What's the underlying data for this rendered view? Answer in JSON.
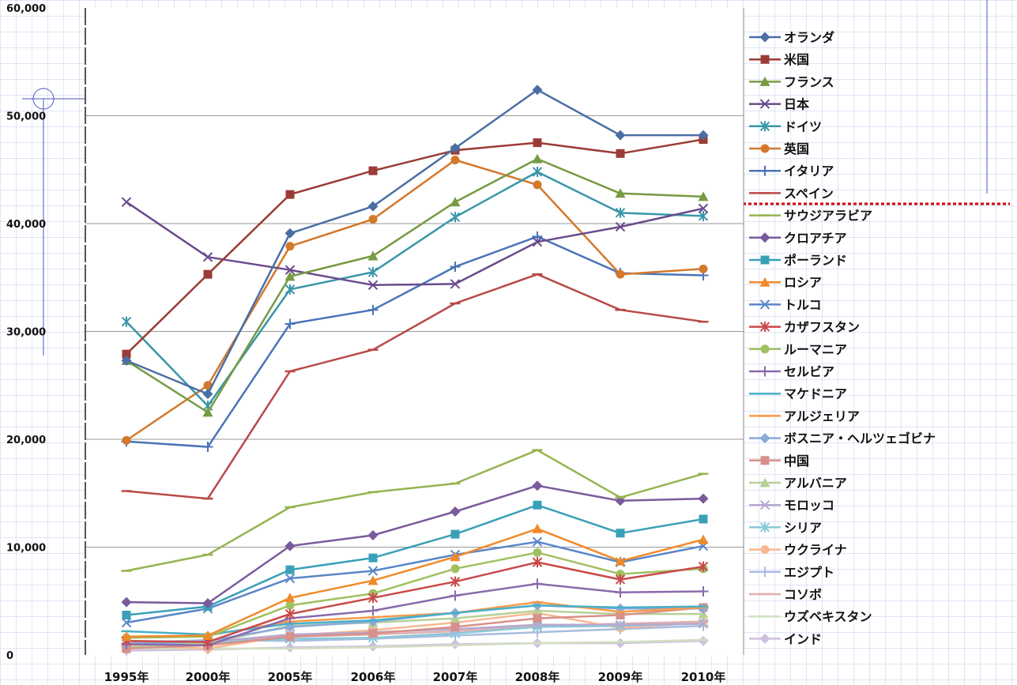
{
  "chart_data": {
    "type": "line",
    "categories": [
      "1995年",
      "2000年",
      "2005年",
      "2006年",
      "2007年",
      "2008年",
      "2009年",
      "2010年"
    ],
    "y_ticks": [
      "0",
      "10,000",
      "20,000",
      "30,000",
      "40,000",
      "50,000",
      "60,000"
    ],
    "ylim": [
      0,
      60000
    ],
    "grid": "horizontal major gridlines",
    "legend_position": "right",
    "series": [
      {
        "name": "オランダ",
        "color": "#4a6fa5",
        "marker": "diamond",
        "values": [
          27300,
          24200,
          39100,
          41600,
          47000,
          52400,
          48200,
          48200
        ]
      },
      {
        "name": "米国",
        "color": "#9b3b36",
        "marker": "square",
        "values": [
          27900,
          35300,
          42700,
          44900,
          46800,
          47500,
          46500,
          47800
        ]
      },
      {
        "name": "フランス",
        "color": "#779a43",
        "marker": "triangle",
        "values": [
          27300,
          22500,
          35100,
          37000,
          42000,
          46000,
          42800,
          42500
        ]
      },
      {
        "name": "日本",
        "color": "#6a4a8c",
        "marker": "x",
        "values": [
          42000,
          36900,
          35700,
          34300,
          34400,
          38300,
          39700,
          41400
        ]
      },
      {
        "name": "ドイツ",
        "color": "#3a96a8",
        "marker": "asterisk",
        "values": [
          30900,
          23100,
          33900,
          35500,
          40600,
          44800,
          41000,
          40700
        ]
      },
      {
        "name": "英国",
        "color": "#d4782b",
        "marker": "circle",
        "values": [
          19900,
          25000,
          37900,
          40400,
          45900,
          43600,
          35300,
          35800
        ]
      },
      {
        "name": "イタリア",
        "color": "#4a74b8",
        "marker": "plus",
        "values": [
          19800,
          19300,
          30700,
          32000,
          36000,
          38800,
          35400,
          35200
        ]
      },
      {
        "name": "スペイン",
        "color": "#b84a46",
        "marker": "dash",
        "values": [
          15200,
          14500,
          26300,
          28300,
          32600,
          35300,
          32000,
          30900
        ]
      },
      {
        "name": "サウジアラビア",
        "color": "#96b451",
        "marker": "dash",
        "values": [
          7800,
          9300,
          13700,
          15100,
          15900,
          19000,
          14600,
          16800
        ]
      },
      {
        "name": "クロアチア",
        "color": "#7a5a9c",
        "marker": "diamond",
        "values": [
          4900,
          4800,
          10100,
          11100,
          13300,
          15700,
          14300,
          14500
        ]
      },
      {
        "name": "ポーランド",
        "color": "#3aa0b8",
        "marker": "square",
        "values": [
          3700,
          4500,
          7900,
          9000,
          11200,
          13900,
          11300,
          12600
        ]
      },
      {
        "name": "ロシア",
        "color": "#f08a2a",
        "marker": "triangle",
        "values": [
          1700,
          1800,
          5300,
          6900,
          9100,
          11700,
          8700,
          10700
        ]
      },
      {
        "name": "トルコ",
        "color": "#5a86c8",
        "marker": "x",
        "values": [
          3000,
          4300,
          7100,
          7800,
          9300,
          10500,
          8600,
          10100
        ]
      },
      {
        "name": "カザフスタン",
        "color": "#c84a4a",
        "marker": "asterisk",
        "values": [
          1300,
          1200,
          3800,
          5300,
          6800,
          8600,
          7000,
          8200
        ]
      },
      {
        "name": "ルーマニア",
        "color": "#a0c060",
        "marker": "circle",
        "values": [
          1600,
          1700,
          4600,
          5700,
          8000,
          9500,
          7500,
          8000
        ]
      },
      {
        "name": "セルビア",
        "color": "#8a6aac",
        "marker": "plus",
        "values": [
          1000,
          900,
          3400,
          4100,
          5500,
          6600,
          5800,
          5900
        ]
      },
      {
        "name": "マケドニア",
        "color": "#4ab0c8",
        "marker": "dash",
        "values": [
          2200,
          1900,
          2900,
          3200,
          3900,
          4600,
          4400,
          4500
        ]
      },
      {
        "name": "アルジェリア",
        "color": "#f89a4a",
        "marker": "dash",
        "values": [
          1600,
          1800,
          3100,
          3500,
          3900,
          4900,
          4000,
          4400
        ]
      },
      {
        "name": "ボスニア・ヘルツェゴビナ",
        "color": "#8aa8d8",
        "marker": "diamond",
        "values": [
          1000,
          1300,
          2600,
          3100,
          3900,
          4600,
          4300,
          4300
        ]
      },
      {
        "name": "中国",
        "color": "#d8908a",
        "marker": "square",
        "values": [
          600,
          900,
          1700,
          2000,
          2600,
          3400,
          3700,
          4400
        ]
      },
      {
        "name": "アルバニア",
        "color": "#b8d098",
        "marker": "triangle",
        "values": [
          700,
          1100,
          2700,
          3000,
          3400,
          4100,
          3800,
          3800
        ]
      },
      {
        "name": "モロッコ",
        "color": "#b8a8d0",
        "marker": "x",
        "values": [
          1300,
          1200,
          1900,
          2100,
          2400,
          2800,
          2800,
          2900
        ]
      },
      {
        "name": "シリア",
        "color": "#88c8d8",
        "marker": "asterisk",
        "values": [
          1000,
          1200,
          1500,
          1600,
          2000,
          2600,
          2700,
          2900
        ]
      },
      {
        "name": "ウクライナ",
        "color": "#f8b890",
        "marker": "circle",
        "values": [
          900,
          600,
          1800,
          2300,
          3000,
          3900,
          2500,
          3000
        ]
      },
      {
        "name": "エジプト",
        "color": "#a8bce0",
        "marker": "plus",
        "values": [
          1100,
          1400,
          1300,
          1500,
          1800,
          2100,
          2400,
          2700
        ]
      },
      {
        "name": "コソボ",
        "color": "#e0b0b0",
        "marker": "dash",
        "values": [
          800,
          1100,
          1700,
          1900,
          2200,
          2700,
          2900,
          3100
        ]
      },
      {
        "name": "ウズベキスタン",
        "color": "#d0e0c0",
        "marker": "dash",
        "values": [
          600,
          600,
          600,
          700,
          900,
          1100,
          1200,
          1400
        ]
      },
      {
        "name": "インド",
        "color": "#d0c0e0",
        "marker": "diamond",
        "values": [
          400,
          500,
          700,
          800,
          1000,
          1100,
          1100,
          1300
        ]
      }
    ]
  }
}
